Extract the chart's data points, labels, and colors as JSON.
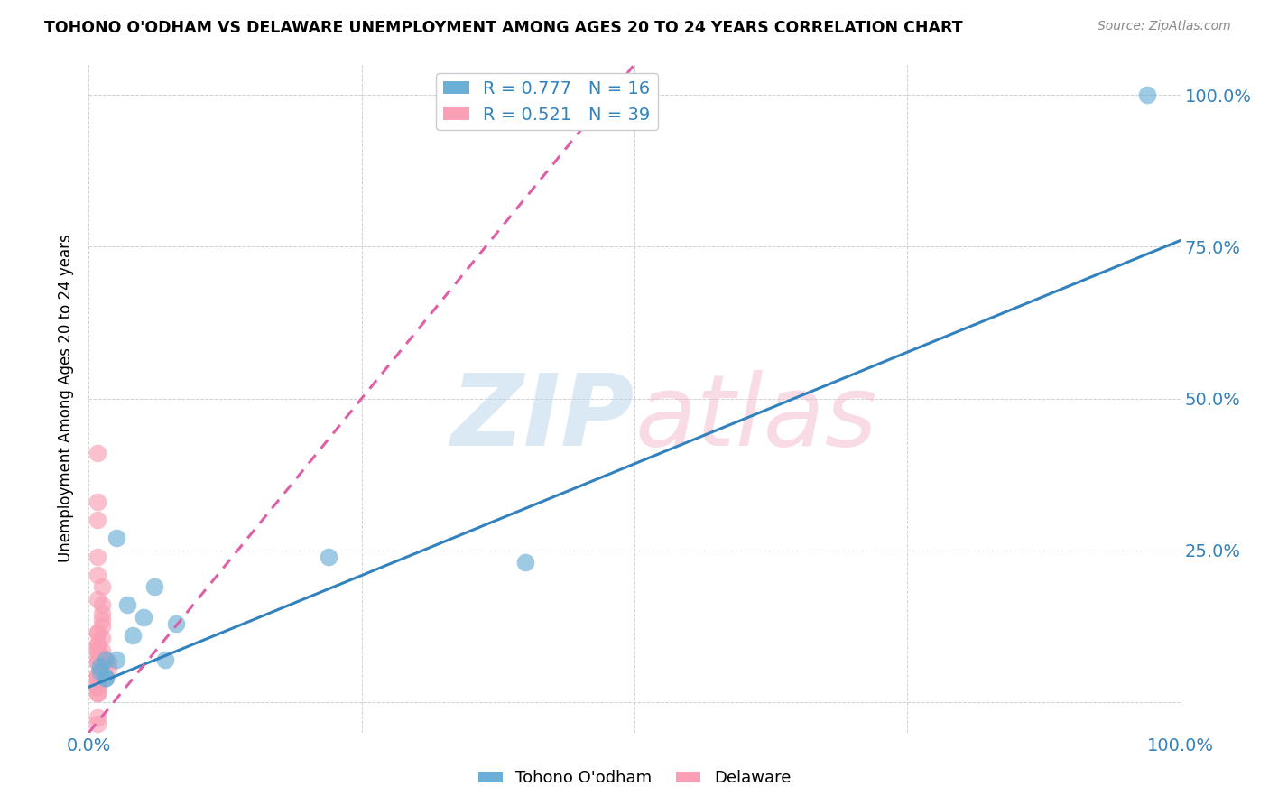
{
  "title": "TOHONO O'ODHAM VS DELAWARE UNEMPLOYMENT AMONG AGES 20 TO 24 YEARS CORRELATION CHART",
  "source": "Source: ZipAtlas.com",
  "ylabel": "Unemployment Among Ages 20 to 24 years",
  "xlabel": "",
  "xlim": [
    0.0,
    1.0
  ],
  "ylim": [
    -0.05,
    1.05
  ],
  "xticks": [
    0.0,
    0.25,
    0.5,
    0.75,
    1.0
  ],
  "xtick_labels": [
    "0.0%",
    "",
    "",
    "",
    "100.0%"
  ],
  "ytick_labels": [
    "",
    "25.0%",
    "50.0%",
    "75.0%",
    "100.0%"
  ],
  "yticks": [
    0.0,
    0.25,
    0.5,
    0.75,
    1.0
  ],
  "blue_R": 0.777,
  "blue_N": 16,
  "pink_R": 0.521,
  "pink_N": 39,
  "blue_color": "#6baed6",
  "pink_color": "#fa9fb5",
  "blue_line_color": "#3182bd",
  "pink_line_color": "#de5fa8",
  "watermark_blue": "#b8d4ea",
  "watermark_pink": "#f4b8cc",
  "legend_label_blue": "Tohono O'odham",
  "legend_label_pink": "Delaware",
  "blue_scatter_x": [
    0.015,
    0.035,
    0.025,
    0.04,
    0.05,
    0.06,
    0.025,
    0.07,
    0.01,
    0.015,
    0.22,
    0.4,
    0.97,
    0.015,
    0.01,
    0.08
  ],
  "blue_scatter_y": [
    0.04,
    0.16,
    0.27,
    0.11,
    0.14,
    0.19,
    0.07,
    0.07,
    0.05,
    0.04,
    0.24,
    0.23,
    1.0,
    0.07,
    0.06,
    0.13
  ],
  "pink_scatter_x": [
    0.008,
    0.008,
    0.008,
    0.008,
    0.008,
    0.012,
    0.008,
    0.012,
    0.012,
    0.012,
    0.012,
    0.008,
    0.008,
    0.012,
    0.008,
    0.008,
    0.008,
    0.008,
    0.012,
    0.012,
    0.008,
    0.012,
    0.012,
    0.008,
    0.008,
    0.018,
    0.018,
    0.012,
    0.008,
    0.008,
    0.008,
    0.008,
    0.008,
    0.008,
    0.008,
    0.008,
    0.008,
    0.008,
    0.008
  ],
  "pink_scatter_y": [
    0.41,
    0.33,
    0.3,
    0.24,
    0.21,
    0.19,
    0.17,
    0.16,
    0.145,
    0.135,
    0.125,
    0.115,
    0.115,
    0.105,
    0.095,
    0.095,
    0.085,
    0.085,
    0.085,
    0.075,
    0.075,
    0.075,
    0.065,
    0.065,
    0.065,
    0.065,
    0.055,
    0.055,
    0.045,
    0.045,
    0.045,
    0.035,
    0.035,
    0.025,
    0.025,
    0.015,
    0.015,
    -0.025,
    -0.035
  ],
  "blue_line_x0": 0.0,
  "blue_line_y0": 0.025,
  "blue_line_x1": 1.0,
  "blue_line_y1": 0.76,
  "pink_line_x0": 0.0,
  "pink_line_y0": -0.05,
  "pink_line_x1": 0.5,
  "pink_line_y1": 1.05
}
